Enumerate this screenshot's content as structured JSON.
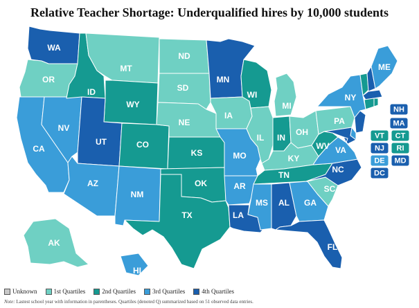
{
  "title": "Relative Teacher Shortage: Underqualified hires by 10,000 students",
  "colors": {
    "unknown": "#c8c8c8",
    "q1": "#6fd0c3",
    "q2": "#159a91",
    "q3": "#3a9dd9",
    "q4": "#1a5fae"
  },
  "legend": [
    {
      "label": "Unknown",
      "key": "unknown"
    },
    {
      "label": "1st Quartiles",
      "key": "q1"
    },
    {
      "label": "2nd Quartiles",
      "key": "q2"
    },
    {
      "label": "3rd Quartiles",
      "key": "q3"
    },
    {
      "label": "4th Quartiles",
      "key": "q4"
    }
  ],
  "note_prefix": "Note:",
  "note": "Lastest school year with information in parentheses. Quartiles (denoted Q) summarized based on 51 observed data entries.",
  "states": {
    "WA": "q4",
    "OR": "q1",
    "CA": "q3",
    "NV": "q3",
    "ID": "q2",
    "MT": "q1",
    "WY": "q2",
    "UT": "q4",
    "AZ": "q3",
    "CO": "q2",
    "NM": "q3",
    "ND": "q1",
    "SD": "q1",
    "NE": "q1",
    "KS": "q2",
    "OK": "q2",
    "TX": "q2",
    "MN": "q4",
    "IA": "q1",
    "MO": "q3",
    "AR": "q3",
    "LA": "q4",
    "WI": "q2",
    "IL": "q1",
    "MI": "q1",
    "IN": "q2",
    "OH": "q1",
    "KY": "q1",
    "TN": "q2",
    "MS": "q3",
    "AL": "q4",
    "GA": "q3",
    "FL": "q4",
    "SC": "q1",
    "NC": "q4",
    "VA": "q3",
    "WV": "q2",
    "PA": "q1",
    "NY": "q3",
    "ME": "q3",
    "AK": "q1",
    "HI": "q3",
    "NH": "q4",
    "MA": "q4",
    "VT": "q2",
    "CT": "q2",
    "NJ": "q4",
    "RI": "q2",
    "DE": "q3",
    "MD": "q4",
    "DC": "q4"
  },
  "labels": [
    "WA",
    "OR",
    "CA",
    "NV",
    "ID",
    "MT",
    "WY",
    "UT",
    "AZ",
    "CO",
    "NM",
    "ND",
    "SD",
    "NE",
    "KS",
    "OK",
    "TX",
    "MN",
    "IA",
    "MO",
    "AR",
    "LA",
    "WI",
    "IL",
    "MI",
    "IN",
    "OH",
    "KY",
    "TN",
    "MS",
    "AL",
    "GA",
    "FL",
    "SC",
    "NC",
    "VA",
    "WV",
    "PA",
    "NY",
    "ME",
    "AK",
    "HI"
  ],
  "boxes": [
    "NH",
    "MA",
    "VT",
    "CT",
    "NJ",
    "RI",
    "DE",
    "MD",
    "DC"
  ]
}
